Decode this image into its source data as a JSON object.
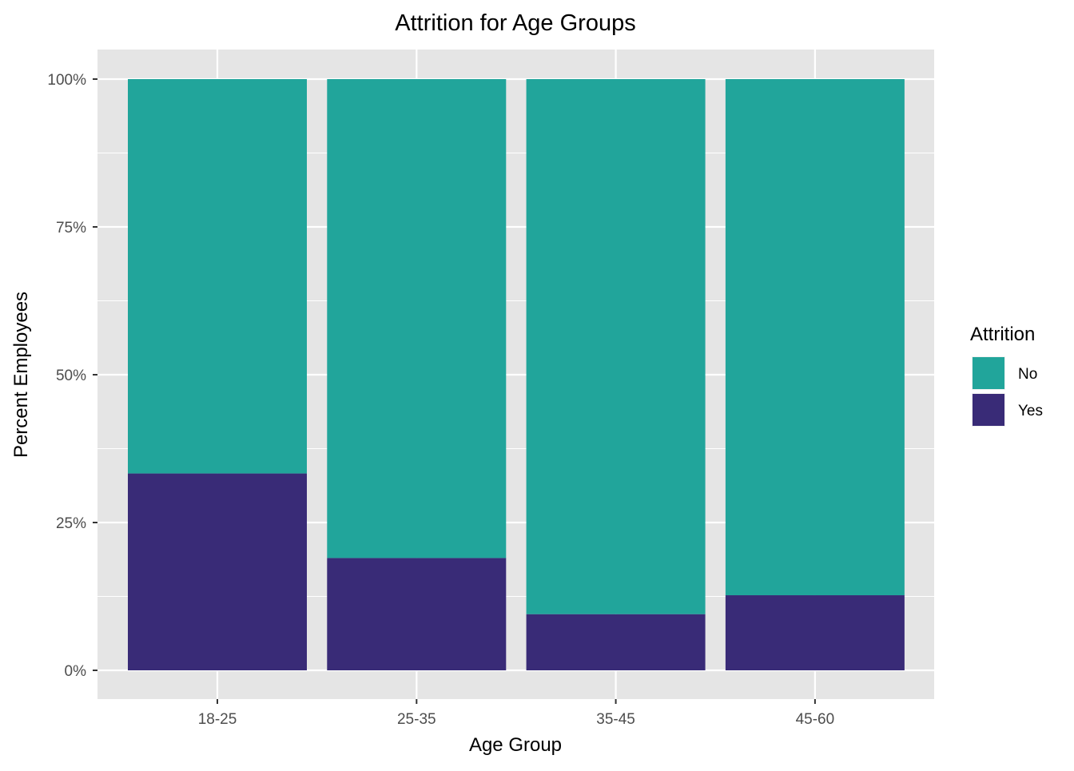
{
  "chart_data": {
    "type": "bar",
    "stacked": true,
    "normalized": true,
    "title": "Attrition for Age Groups",
    "xlabel": "Age Group",
    "ylabel": "Percent Employees",
    "categories": [
      "18-25",
      "25-35",
      "35-45",
      "45-60"
    ],
    "series": [
      {
        "name": "No",
        "color": "#21a59b",
        "values": [
          0.667,
          0.81,
          0.905,
          0.873
        ]
      },
      {
        "name": "Yes",
        "color": "#392b77",
        "values": [
          0.333,
          0.19,
          0.095,
          0.127
        ]
      }
    ],
    "ylim": [
      0,
      1
    ],
    "yticks": [
      {
        "value": 0,
        "label": "0%"
      },
      {
        "value": 0.25,
        "label": "25%"
      },
      {
        "value": 0.5,
        "label": "50%"
      },
      {
        "value": 0.75,
        "label": "75%"
      },
      {
        "value": 1,
        "label": "100%"
      }
    ],
    "grid": true,
    "legend": {
      "title": "Attrition",
      "position": "right",
      "items": [
        "No",
        "Yes"
      ]
    },
    "colors": {
      "panel_background": "#e5e5e5",
      "grid_line": "#ffffff",
      "tick_text": "#4d4d4d",
      "axis_tick": "#333333"
    }
  }
}
